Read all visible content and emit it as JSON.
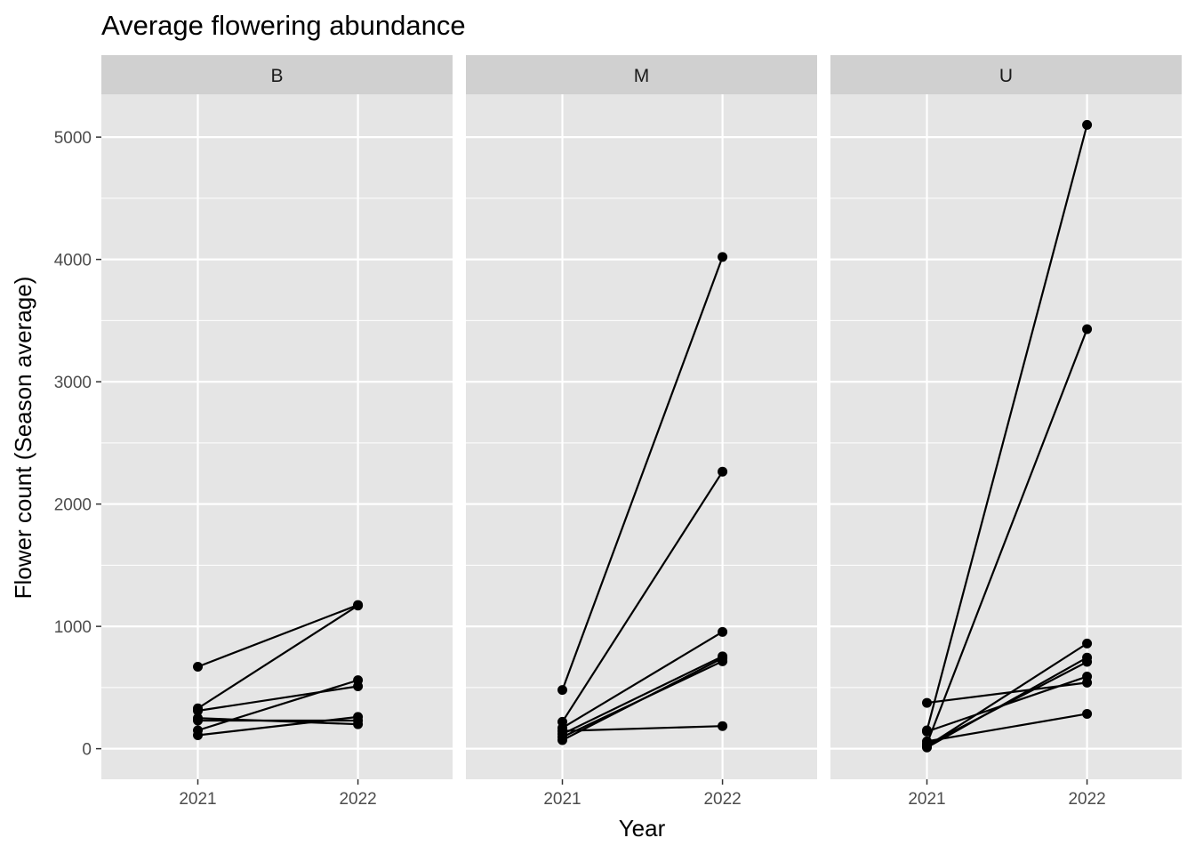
{
  "chart_data": {
    "type": "line",
    "title": "Average flowering abundance",
    "xlabel": "Year",
    "ylabel": "Flower count (Season average)",
    "x": [
      "2021",
      "2022"
    ],
    "ylim": [
      -250,
      5350
    ],
    "yticks": [
      0,
      1000,
      2000,
      3000,
      4000,
      5000
    ],
    "grid": true,
    "legend": "none",
    "facets": [
      {
        "label": "B",
        "series": [
          {
            "values": [
              670,
              1175
            ]
          },
          {
            "values": [
              330,
              1170
            ]
          },
          {
            "values": [
              310,
              510
            ]
          },
          {
            "values": [
              150,
              560
            ]
          },
          {
            "values": [
              250,
              200
            ]
          },
          {
            "values": [
              230,
              230
            ]
          },
          {
            "values": [
              110,
              260
            ]
          }
        ]
      },
      {
        "label": "M",
        "series": [
          {
            "values": [
              480,
              4020
            ]
          },
          {
            "values": [
              220,
              2265
            ]
          },
          {
            "values": [
              170,
              955
            ]
          },
          {
            "values": [
              120,
              755
            ]
          },
          {
            "values": [
              95,
              715
            ]
          },
          {
            "values": [
              145,
              185
            ]
          },
          {
            "values": [
              70,
              740
            ]
          }
        ]
      },
      {
        "label": "U",
        "series": [
          {
            "values": [
              150,
              5100
            ]
          },
          {
            "values": [
              40,
              3430
            ]
          },
          {
            "values": [
              375,
              540
            ]
          },
          {
            "values": [
              20,
              860
            ]
          },
          {
            "values": [
              10,
              745
            ]
          },
          {
            "values": [
              30,
              710
            ]
          },
          {
            "values": [
              140,
              590
            ]
          },
          {
            "values": [
              60,
              285
            ]
          }
        ]
      }
    ]
  }
}
